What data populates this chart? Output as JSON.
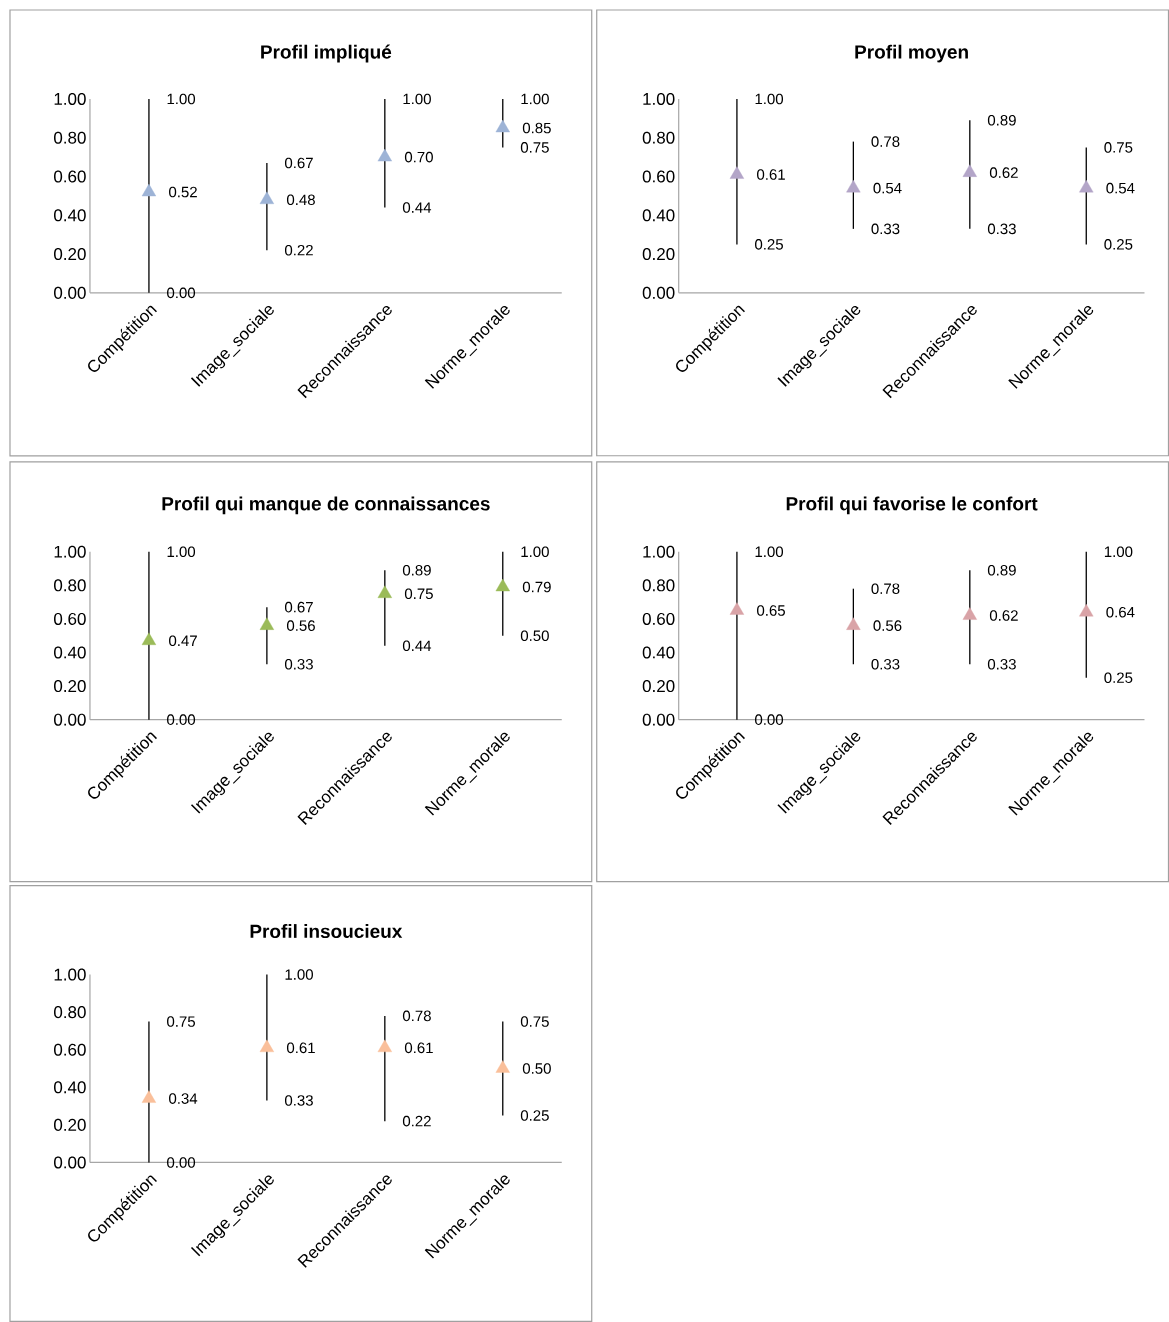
{
  "chart_data": [
    {
      "type": "scatter",
      "title": "Profil impliqué",
      "categories": [
        "Compétition",
        "Image_sociale",
        "Reconnaissance",
        "Norme_morale"
      ],
      "values": [
        0.52,
        0.48,
        0.7,
        0.85
      ],
      "errors": [
        [
          0,
          1
        ],
        [
          0.22,
          0.67
        ],
        [
          0.44,
          1
        ],
        [
          0.75,
          1
        ]
      ],
      "value_labels": [
        "0.52",
        "0.48",
        "0.70",
        "0.85"
      ],
      "color": "#9db3d6",
      "marker": "triangle",
      "ylim": [
        0,
        1
      ],
      "yticks": [
        {
          "value": 0,
          "label": "0.00"
        },
        {
          "value": 0.2,
          "label": "0.20"
        },
        {
          "value": 0.4,
          "label": "0.40"
        },
        {
          "value": 0.6,
          "label": "0.60"
        },
        {
          "value": 0.8,
          "label": "0.80"
        },
        {
          "value": 1,
          "label": "1.00"
        }
      ],
      "annotations": [
        "0.00",
        "1.00",
        "0.22",
        "0.67",
        "0.44",
        "1.00",
        "0.75",
        "1.00"
      ]
    },
    {
      "type": "scatter",
      "title": "Profil moyen",
      "categories": [
        "Compétition",
        "Image_sociale",
        "Reconnaissance",
        "Norme_morale"
      ],
      "values": [
        0.61,
        0.54,
        0.62,
        0.54
      ],
      "errors": [
        [
          0.25,
          1
        ],
        [
          0.33,
          0.78
        ],
        [
          0.33,
          0.89
        ],
        [
          0.25,
          0.75
        ]
      ],
      "value_labels": [
        "0.61",
        "0.54",
        "0.62",
        "0.54"
      ],
      "color": "#b3a5c8",
      "marker": "triangle",
      "ylim": [
        0,
        1
      ],
      "yticks": [
        {
          "value": 0,
          "label": "0.00"
        },
        {
          "value": 0.2,
          "label": "0.20"
        },
        {
          "value": 0.4,
          "label": "0.40"
        },
        {
          "value": 0.6,
          "label": "0.60"
        },
        {
          "value": 0.8,
          "label": "0.80"
        },
        {
          "value": 1,
          "label": "1.00"
        }
      ],
      "annotations": [
        "0.25",
        "1.00",
        "0.33",
        "0.78",
        "0.33",
        "0.89",
        "0.25",
        "0.75"
      ]
    },
    {
      "type": "scatter",
      "title": "Profil qui manque de connaissances",
      "categories": [
        "Compétition",
        "Image_sociale",
        "Reconnaissance",
        "Norme_morale"
      ],
      "values": [
        0.47,
        0.56,
        0.75,
        0.79
      ],
      "errors": [
        [
          0,
          1
        ],
        [
          0.33,
          0.67
        ],
        [
          0.44,
          0.89
        ],
        [
          0.5,
          1
        ]
      ],
      "value_labels": [
        "0.47",
        "0.56",
        "0.75",
        "0.79"
      ],
      "color": "#9bbb59",
      "marker": "triangle",
      "ylim": [
        0,
        1
      ],
      "yticks": [
        {
          "value": 0,
          "label": "0.00"
        },
        {
          "value": 0.2,
          "label": "0.20"
        },
        {
          "value": 0.4,
          "label": "0.40"
        },
        {
          "value": 0.6,
          "label": "0.60"
        },
        {
          "value": 0.8,
          "label": "0.80"
        },
        {
          "value": 1,
          "label": "1.00"
        }
      ],
      "annotations": [
        "0.00",
        "1.00",
        "0.33",
        "0.67",
        "0.44",
        "0.89",
        "0.50",
        "1.00"
      ]
    },
    {
      "type": "scatter",
      "title": "Profil qui favorise le confort",
      "categories": [
        "Compétition",
        "Image_sociale",
        "Reconnaissance",
        "Norme_morale"
      ],
      "values": [
        0.65,
        0.56,
        0.62,
        0.64
      ],
      "errors": [
        [
          0,
          1
        ],
        [
          0.33,
          0.78
        ],
        [
          0.33,
          0.89
        ],
        [
          0.25,
          1
        ]
      ],
      "value_labels": [
        "0.65",
        "0.56",
        "0.62",
        "0.64"
      ],
      "color": "#d9a3a7",
      "marker": "triangle",
      "ylim": [
        0,
        1
      ],
      "yticks": [
        {
          "value": 0,
          "label": "0.00"
        },
        {
          "value": 0.2,
          "label": "0.20"
        },
        {
          "value": 0.4,
          "label": "0.40"
        },
        {
          "value": 0.6,
          "label": "0.60"
        },
        {
          "value": 0.8,
          "label": "0.80"
        },
        {
          "value": 1,
          "label": "1.00"
        }
      ],
      "annotations": [
        "0.00",
        "1.00",
        "0.33",
        "0.78",
        "0.33",
        "0.89",
        "0.25",
        "1.00"
      ]
    },
    {
      "type": "scatter",
      "title": "Profil insoucieux",
      "categories": [
        "Compétition",
        "Image_sociale",
        "Reconnaissance",
        "Norme_morale"
      ],
      "values": [
        0.34,
        0.61,
        0.61,
        0.5
      ],
      "errors": [
        [
          0,
          0.75
        ],
        [
          0.33,
          1
        ],
        [
          0.22,
          0.78
        ],
        [
          0.25,
          0.75
        ]
      ],
      "value_labels": [
        "0.34",
        "0.61",
        "0.61",
        "0.50"
      ],
      "color": "#fabf9a",
      "marker": "triangle",
      "ylim": [
        0,
        1
      ],
      "yticks": [
        {
          "value": 0,
          "label": "0.00"
        },
        {
          "value": 0.2,
          "label": "0.20"
        },
        {
          "value": 0.4,
          "label": "0.40"
        },
        {
          "value": 0.6,
          "label": "0.60"
        },
        {
          "value": 0.8,
          "label": "0.80"
        },
        {
          "value": 1,
          "label": "1.00"
        }
      ],
      "annotations": [
        "0.00",
        "0.75",
        "0.33",
        "1.00",
        "0.22",
        "0.78",
        "0.25",
        "0.75"
      ]
    }
  ]
}
